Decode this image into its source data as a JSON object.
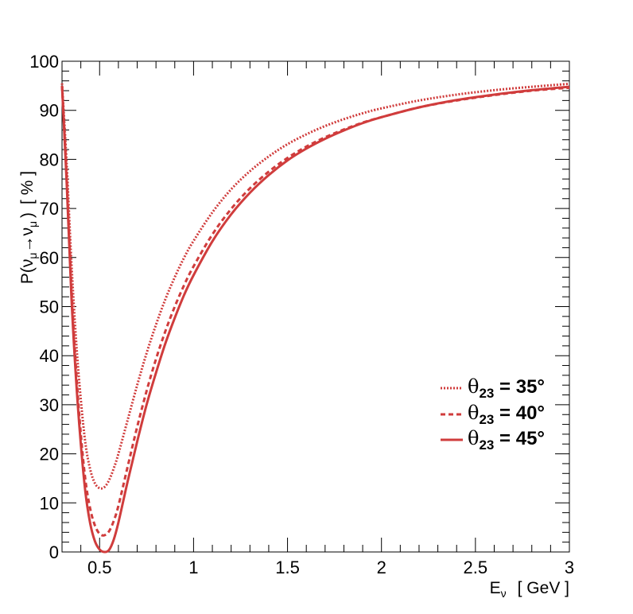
{
  "chart_data": {
    "type": "line",
    "title": "",
    "xlabel": {
      "main": "E",
      "sub": "ν",
      "unit": "[ GeV ]"
    },
    "ylabel": {
      "prefix": "P(",
      "nu1": "ν",
      "sub1": "μ",
      "arrow": "→",
      "nu2": "ν",
      "sub2": "μ",
      "close": ")",
      "unit": "[ % ]"
    },
    "xlim": [
      0.3,
      3.0
    ],
    "ylim": [
      0,
      100
    ],
    "x_ticks": [
      "0.5",
      "1",
      "1.5",
      "2",
      "2.5",
      "3"
    ],
    "y_ticks": [
      "0",
      "10",
      "20",
      "30",
      "40",
      "50",
      "60",
      "70",
      "80",
      "90",
      "100"
    ],
    "grid": false,
    "legend_position": "center-right",
    "color": "#d03c3c",
    "series": [
      {
        "name": "θ23 = 35°",
        "legend": {
          "greek": "θ",
          "sub": "23",
          "rest": " = 35°"
        },
        "style": "dotted",
        "x": [
          0.3,
          0.325,
          0.35,
          0.375,
          0.4,
          0.425,
          0.45,
          0.475,
          0.5,
          0.525,
          0.55,
          0.575,
          0.6,
          0.65,
          0.7,
          0.75,
          0.8,
          0.85,
          0.9,
          0.95,
          1.0,
          1.1,
          1.2,
          1.3,
          1.4,
          1.5,
          1.6,
          1.7,
          1.8,
          1.9,
          2.0,
          2.2,
          2.4,
          2.6,
          2.8,
          3.0
        ],
        "y": [
          95.5,
          79,
          59,
          43,
          31,
          22,
          16.8,
          14,
          13,
          13.2,
          14.6,
          17,
          20,
          27,
          34,
          40.5,
          46.3,
          51.5,
          56,
          60,
          63.4,
          69.2,
          73.9,
          77.6,
          80.6,
          83.1,
          85.1,
          86.8,
          88.2,
          89.4,
          90.4,
          92.0,
          93.2,
          94.1,
          94.8,
          95.4
        ]
      },
      {
        "name": "θ23 = 40°",
        "legend": {
          "greek": "θ",
          "sub": "23",
          "rest": " = 40°"
        },
        "style": "dashed",
        "x": [
          0.3,
          0.325,
          0.35,
          0.375,
          0.4,
          0.425,
          0.45,
          0.475,
          0.5,
          0.525,
          0.55,
          0.575,
          0.6,
          0.65,
          0.7,
          0.75,
          0.8,
          0.85,
          0.9,
          0.95,
          1.0,
          1.1,
          1.2,
          1.3,
          1.4,
          1.5,
          1.6,
          1.7,
          1.8,
          1.9,
          2.0,
          2.2,
          2.4,
          2.6,
          2.8,
          3.0
        ],
        "y": [
          95,
          76,
          54,
          37,
          24,
          14.5,
          8.8,
          5.4,
          3.7,
          3.4,
          4.2,
          6.3,
          9.4,
          17.5,
          25.5,
          32.8,
          39.3,
          45,
          50,
          54.4,
          58.2,
          64.7,
          69.9,
          74.1,
          77.5,
          80.3,
          82.6,
          84.5,
          86.1,
          87.5,
          88.6,
          90.6,
          92.0,
          93.1,
          94.0,
          94.6
        ]
      },
      {
        "name": "θ23 = 45°",
        "legend": {
          "greek": "θ",
          "sub": "23",
          "rest": " = 45°"
        },
        "style": "solid",
        "x": [
          0.3,
          0.325,
          0.35,
          0.375,
          0.4,
          0.425,
          0.45,
          0.475,
          0.5,
          0.525,
          0.55,
          0.575,
          0.6,
          0.65,
          0.7,
          0.75,
          0.8,
          0.85,
          0.9,
          0.95,
          1.0,
          1.1,
          1.2,
          1.3,
          1.4,
          1.5,
          1.6,
          1.7,
          1.8,
          1.9,
          2.0,
          2.2,
          2.4,
          2.6,
          2.8,
          3.0
        ],
        "y": [
          95,
          75,
          52,
          35,
          22,
          12,
          5.8,
          2.2,
          0.5,
          0,
          0.4,
          2.5,
          6,
          14.5,
          22.5,
          30,
          36.5,
          42.5,
          47.7,
          52.4,
          56.4,
          63.3,
          68.8,
          73.2,
          76.8,
          79.8,
          82.2,
          84.2,
          85.9,
          87.4,
          88.6,
          90.6,
          92.1,
          93.2,
          94.1,
          94.8
        ]
      }
    ]
  }
}
